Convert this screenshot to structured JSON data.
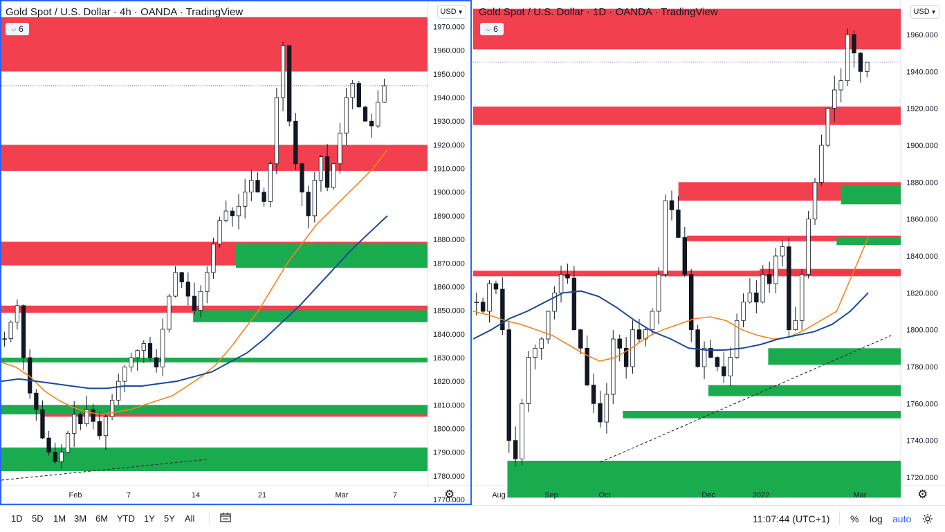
{
  "left_chart": {
    "title": "Gold Spot / U.S. Dollar · 4h · OANDA · TradingView",
    "legend_count": "6",
    "currency": "USD",
    "price_labels": [
      "1970.000",
      "1960.000",
      "1950.000",
      "1940.000",
      "1930.000",
      "1920.000",
      "1910.000",
      "1900.000",
      "1890.000",
      "1880.000",
      "1870.000",
      "1860.000",
      "1850.000",
      "1840.000",
      "1830.000",
      "1820.000",
      "1810.000",
      "1800.000",
      "1790.000",
      "1780.000",
      "1770.000"
    ],
    "time_labels": [
      "Feb",
      "7",
      "14",
      "21",
      "Mar",
      "7"
    ]
  },
  "right_chart": {
    "title": "Gold Spot / U.S. Dollar · 1D · OANDA · TradingView",
    "legend_count": "6",
    "currency": "USD",
    "price_labels": [
      "1960.000",
      "1940.000",
      "1920.000",
      "1900.000",
      "1880.000",
      "1860.000",
      "1840.000",
      "1820.000",
      "1800.000",
      "1780.000",
      "1760.000",
      "1740.000",
      "1720.000"
    ],
    "time_labels": [
      "Aug",
      "Sep",
      "Oct",
      "Dec",
      "2022",
      "Mar"
    ]
  },
  "colors": {
    "supply_zone": "#f23645",
    "demand_zone": "#089981",
    "demand_zone_fill": "#1bab4f",
    "ma_fast": "#f7821b",
    "ma_slow": "#1848a0",
    "active_border": "#2962ff"
  },
  "chart_data": [
    {
      "type": "candlestick",
      "title": "Gold Spot / U.S. Dollar · 4h · OANDA · TradingView",
      "ylim": [
        1770,
        1976
      ],
      "x_ticks": [
        "Feb",
        "7",
        "14",
        "21",
        "Mar",
        "7"
      ],
      "supply_zones": [
        [
          1951,
          1974
        ],
        [
          1909,
          1920
        ],
        [
          1869,
          1879
        ],
        [
          1849,
          1852
        ],
        [
          1805,
          1809
        ]
      ],
      "demand_zones": [
        [
          1868,
          1878
        ],
        [
          1845,
          1850
        ],
        [
          1828,
          1830
        ],
        [
          1806,
          1810
        ],
        [
          1782,
          1792
        ]
      ],
      "series": [
        {
          "values": [
            1838,
            1845,
            1852,
            1830,
            1815,
            1808,
            1796,
            1790,
            1786,
            1790,
            1798,
            1806,
            1802,
            1808,
            1803,
            1797,
            1805,
            1812,
            1820,
            1826,
            1830,
            1833,
            1836,
            1830,
            1826,
            1842,
            1856,
            1866,
            1862,
            1856,
            1850,
            1858,
            1866,
            1878,
            1888,
            1892,
            1890,
            1894,
            1900,
            1905,
            1900,
            1896,
            1912,
            1940,
            1962,
            1930,
            1912,
            1900,
            1890,
            1905,
            1915,
            1902,
            1912,
            1925,
            1940,
            1946,
            1936,
            1930,
            1928,
            1938,
            1945
          ]
        },
        {
          "name": "",
          "values": [
            1828,
            1826,
            1822,
            1816,
            1812,
            1809,
            1807,
            1806,
            1807,
            1808,
            1810,
            1812,
            1814,
            1818,
            1822,
            1827,
            1834,
            1842,
            1850,
            1860,
            1870,
            1878,
            1886,
            1892,
            1898,
            1904,
            1910,
            1918
          ]
        },
        {
          "name": "",
          "values": [
            1820,
            1821,
            1820,
            1819,
            1818,
            1817,
            1817,
            1818,
            1818,
            1819,
            1820,
            1822,
            1824,
            1828,
            1832,
            1838,
            1845,
            1852,
            1860,
            1868,
            1876,
            1883,
            1890
          ]
        }
      ]
    },
    {
      "type": "candlestick",
      "title": "Gold Spot / U.S. Dollar · 1D · OANDA · TradingView",
      "ylim": [
        1708,
        1972
      ],
      "x_ticks": [
        "Aug",
        "Sep",
        "Oct",
        "Dec",
        "2022",
        "Mar"
      ],
      "supply_zones": [
        [
          1952,
          1974
        ],
        [
          1911,
          1921
        ],
        [
          1870,
          1880
        ],
        [
          1848,
          1851
        ],
        [
          1830,
          1833
        ],
        [
          1829,
          1832
        ]
      ],
      "demand_zones": [
        [
          1868,
          1878
        ],
        [
          1846,
          1850
        ],
        [
          1781,
          1790
        ],
        [
          1764,
          1770
        ],
        [
          1752,
          1756
        ],
        [
          1709,
          1729
        ]
      ],
      "series": [
        {
          "values": [
            1815,
            1810,
            1825,
            1822,
            1800,
            1740,
            1730,
            1760,
            1785,
            1790,
            1795,
            1810,
            1820,
            1830,
            1828,
            1800,
            1790,
            1770,
            1760,
            1750,
            1765,
            1795,
            1790,
            1780,
            1800,
            1795,
            1800,
            1810,
            1830,
            1870,
            1865,
            1850,
            1830,
            1800,
            1780,
            1790,
            1785,
            1780,
            1775,
            1785,
            1805,
            1815,
            1820,
            1815,
            1830,
            1825,
            1840,
            1845,
            1800,
            1805,
            1830,
            1860,
            1880,
            1900,
            1920,
            1930,
            1935,
            1960,
            1950,
            1940,
            1945
          ]
        },
        {
          "name": "",
          "values": [
            1810,
            1808,
            1805,
            1803,
            1800,
            1797,
            1792,
            1787,
            1783,
            1785,
            1790,
            1796,
            1800,
            1803,
            1806,
            1807,
            1805,
            1800,
            1797,
            1795,
            1796,
            1800,
            1805,
            1810,
            1830,
            1850
          ]
        },
        {
          "name": "",
          "values": [
            1795,
            1800,
            1806,
            1810,
            1815,
            1820,
            1821,
            1818,
            1812,
            1805,
            1799,
            1795,
            1790,
            1789,
            1789,
            1790,
            1792,
            1795,
            1797,
            1799,
            1803,
            1810,
            1820
          ]
        }
      ]
    }
  ],
  "bottom_bar": {
    "timeframes": [
      "1D",
      "5D",
      "1M",
      "3M",
      "6M",
      "YTD",
      "1Y",
      "5Y",
      "All"
    ],
    "time": "11:07:44 (UTC+1)",
    "percent": "%",
    "log": "log",
    "auto": "auto"
  }
}
